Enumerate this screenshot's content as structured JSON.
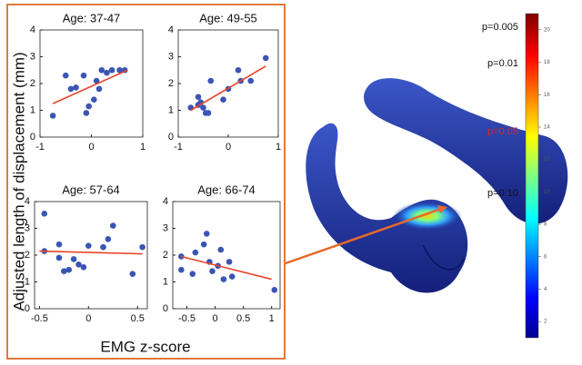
{
  "chart_data": [
    {
      "type": "scatter",
      "title": "Age: 37-47",
      "color": "#3a55b4",
      "fit_color": "#e8442a",
      "x": [
        -0.75,
        -0.5,
        -0.4,
        -0.3,
        -0.15,
        -0.1,
        -0.05,
        0.05,
        0.1,
        0.15,
        0.2,
        0.3,
        0.4,
        0.55,
        0.65
      ],
      "values": [
        0.8,
        2.3,
        1.8,
        1.85,
        2.3,
        0.9,
        1.15,
        1.4,
        2.1,
        1.8,
        2.5,
        2.4,
        2.5,
        2.5,
        2.5
      ],
      "fit": {
        "x": [
          -0.75,
          0.7
        ],
        "y": [
          1.25,
          2.5
        ]
      },
      "xlim": [
        -1,
        1
      ],
      "ylim": [
        0,
        4
      ],
      "xticks": [
        -1,
        0,
        1
      ],
      "yticks": [
        0,
        1,
        2,
        3,
        4
      ]
    },
    {
      "type": "scatter",
      "title": "Age: 49-55",
      "color": "#3a55b4",
      "fit_color": "#e8442a",
      "x": [
        -0.75,
        -0.6,
        -0.6,
        -0.55,
        -0.5,
        -0.45,
        -0.4,
        -0.35,
        -0.1,
        0,
        0.2,
        0.25,
        0.45,
        0.75
      ],
      "values": [
        1.1,
        1.5,
        1.2,
        1.3,
        1.1,
        0.9,
        0.9,
        2.1,
        1.4,
        1.8,
        2.5,
        2.1,
        2.1,
        2.95
      ],
      "fit": {
        "x": [
          -0.75,
          0.75
        ],
        "y": [
          1.0,
          2.65
        ]
      },
      "xlim": [
        -1,
        1
      ],
      "ylim": [
        0,
        4
      ],
      "xticks": [
        -1,
        0,
        1
      ],
      "yticks": [
        0,
        1,
        2,
        3,
        4
      ]
    },
    {
      "type": "scatter",
      "title": "Age: 57-64",
      "color": "#3a55b4",
      "fit_color": "#e8442a",
      "x": [
        -0.45,
        -0.45,
        -0.3,
        -0.3,
        -0.25,
        -0.2,
        -0.15,
        -0.1,
        -0.05,
        0,
        0.15,
        0.2,
        0.25,
        0.45,
        0.55
      ],
      "values": [
        3.55,
        2.15,
        2.4,
        1.9,
        1.4,
        1.45,
        1.85,
        1.65,
        1.55,
        2.35,
        2.3,
        2.6,
        3.1,
        1.3,
        2.3
      ],
      "fit": {
        "x": [
          -0.5,
          0.55
        ],
        "y": [
          2.15,
          2.05
        ]
      },
      "xlim": [
        -0.55,
        0.6
      ],
      "ylim": [
        0,
        4
      ],
      "xticks": [
        -0.5,
        0,
        0.5
      ],
      "yticks": [
        0,
        1,
        2,
        3,
        4
      ]
    },
    {
      "type": "scatter",
      "title": "Age: 66-74",
      "color": "#3a55b4",
      "fit_color": "#e8442a",
      "x": [
        -0.6,
        -0.6,
        -0.4,
        -0.35,
        -0.2,
        -0.15,
        -0.1,
        -0.05,
        0.05,
        0.1,
        0.15,
        0.25,
        0.3,
        1.05
      ],
      "values": [
        1.95,
        1.45,
        1.3,
        2.1,
        2.4,
        2.8,
        1.75,
        1.4,
        1.6,
        2.2,
        1.1,
        1.75,
        1.2,
        0.7
      ],
      "fit": {
        "x": [
          -0.6,
          1.0
        ],
        "y": [
          1.95,
          1.1
        ]
      },
      "xlim": [
        -0.75,
        1.15
      ],
      "ylim": [
        0,
        4
      ],
      "xticks": [
        -0.5,
        0,
        0.5,
        1
      ],
      "yticks": [
        0,
        1,
        2,
        3,
        4
      ]
    }
  ],
  "axis_labels": {
    "x": "EMG z-score",
    "y": "Adjusted length of displacement (mm)"
  },
  "colorbar": {
    "lim": [
      1,
      21
    ],
    "ticks": [
      2,
      4,
      6,
      8,
      10,
      12,
      14,
      16,
      18,
      20
    ],
    "p_labels": [
      {
        "text": "p=0.005",
        "color": "#111111"
      },
      {
        "text": "p=0.01",
        "color": "#111111"
      },
      {
        "text": "p=0.05",
        "color": "#e0262a"
      },
      {
        "text": "p=0.10",
        "color": "#111111"
      }
    ]
  }
}
